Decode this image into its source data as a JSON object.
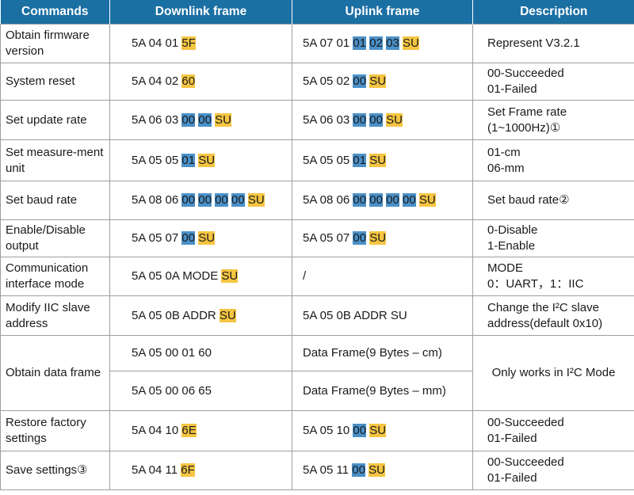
{
  "columns": [
    "Commands",
    "Downlink frame",
    "Uplink frame",
    "Description"
  ],
  "rows": [
    {
      "command": "Obtain firmware version",
      "downlink": [
        {
          "t": "5A 04 01 ",
          "c": "plain"
        },
        {
          "t": "5F",
          "c": "yellow"
        }
      ],
      "uplink": [
        {
          "t": "5A 07 01 ",
          "c": "plain"
        },
        {
          "t": "01",
          "c": "blue"
        },
        {
          "t": " ",
          "c": "plain"
        },
        {
          "t": "02",
          "c": "blue"
        },
        {
          "t": " ",
          "c": "plain"
        },
        {
          "t": "03",
          "c": "blue"
        },
        {
          "t": " ",
          "c": "plain"
        },
        {
          "t": "SU",
          "c": "yellow"
        }
      ],
      "description": [
        "Represent V3.2.1"
      ]
    },
    {
      "command": "System reset",
      "downlink": [
        {
          "t": "5A 04 02 ",
          "c": "plain"
        },
        {
          "t": "60",
          "c": "yellow"
        }
      ],
      "uplink": [
        {
          "t": "5A 05 02 ",
          "c": "plain"
        },
        {
          "t": "00",
          "c": "blue"
        },
        {
          "t": " ",
          "c": "plain"
        },
        {
          "t": "SU",
          "c": "yellow"
        }
      ],
      "description": [
        "00-Succeeded",
        "01-Failed"
      ]
    },
    {
      "command": "Set update rate",
      "downlink": [
        {
          "t": "5A 06 03 ",
          "c": "plain"
        },
        {
          "t": "00",
          "c": "blue"
        },
        {
          "t": " ",
          "c": "plain"
        },
        {
          "t": "00",
          "c": "blue"
        },
        {
          "t": " ",
          "c": "plain"
        },
        {
          "t": "SU",
          "c": "yellow"
        }
      ],
      "uplink": [
        {
          "t": "5A 06 03 ",
          "c": "plain"
        },
        {
          "t": "00",
          "c": "blue"
        },
        {
          "t": " ",
          "c": "plain"
        },
        {
          "t": "00",
          "c": "blue"
        },
        {
          "t": " ",
          "c": "plain"
        },
        {
          "t": "SU",
          "c": "yellow"
        }
      ],
      "description": [
        "Set Frame rate",
        "(1~1000Hz)①"
      ]
    },
    {
      "command": "Set measure-ment unit",
      "downlink": [
        {
          "t": "5A 05 05 ",
          "c": "plain"
        },
        {
          "t": "01",
          "c": "blue"
        },
        {
          "t": " ",
          "c": "plain"
        },
        {
          "t": "SU",
          "c": "yellow"
        }
      ],
      "uplink": [
        {
          "t": "5A 05 05 ",
          "c": "plain"
        },
        {
          "t": "01",
          "c": "blue"
        },
        {
          "t": " ",
          "c": "plain"
        },
        {
          "t": "SU",
          "c": "yellow"
        }
      ],
      "description": [
        "01-cm",
        "06-mm"
      ]
    },
    {
      "command": "Set baud rate",
      "downlink": [
        {
          "t": "5A 08 06 ",
          "c": "plain"
        },
        {
          "t": "00",
          "c": "blue"
        },
        {
          "t": " ",
          "c": "plain"
        },
        {
          "t": "00",
          "c": "blue"
        },
        {
          "t": " ",
          "c": "plain"
        },
        {
          "t": "00",
          "c": "blue"
        },
        {
          "t": " ",
          "c": "plain"
        },
        {
          "t": "00",
          "c": "blue"
        },
        {
          "t": " ",
          "c": "plain"
        },
        {
          "t": "SU",
          "c": "yellow"
        }
      ],
      "uplink": [
        {
          "t": "5A 08 06 ",
          "c": "plain"
        },
        {
          "t": "00",
          "c": "blue"
        },
        {
          "t": " ",
          "c": "plain"
        },
        {
          "t": "00",
          "c": "blue"
        },
        {
          "t": " ",
          "c": "plain"
        },
        {
          "t": "00",
          "c": "blue"
        },
        {
          "t": " ",
          "c": "plain"
        },
        {
          "t": "00",
          "c": "blue"
        },
        {
          "t": " ",
          "c": "plain"
        },
        {
          "t": "SU",
          "c": "yellow"
        }
      ],
      "description": [
        "Set baud rate②"
      ]
    },
    {
      "command": "Enable/Disable output",
      "downlink": [
        {
          "t": "5A 05 07 ",
          "c": "plain"
        },
        {
          "t": "00",
          "c": "blue"
        },
        {
          "t": " ",
          "c": "plain"
        },
        {
          "t": "SU",
          "c": "yellow"
        }
      ],
      "uplink": [
        {
          "t": "5A 05 07 ",
          "c": "plain"
        },
        {
          "t": "00",
          "c": "blue"
        },
        {
          "t": " ",
          "c": "plain"
        },
        {
          "t": "SU",
          "c": "yellow"
        }
      ],
      "description": [
        "0-Disable",
        "1-Enable"
      ]
    },
    {
      "command": "Communication interface mode",
      "downlink": [
        {
          "t": "5A 05 0A MODE ",
          "c": "plain"
        },
        {
          "t": "SU",
          "c": "yellow"
        }
      ],
      "uplink": [
        {
          "t": "/",
          "c": "plain"
        }
      ],
      "description": [
        "MODE",
        "0：UART，1：IIC"
      ]
    },
    {
      "command": "Modify IIC slave address",
      "downlink": [
        {
          "t": "5A 05 0B ADDR ",
          "c": "plain"
        },
        {
          "t": "SU",
          "c": "yellow"
        }
      ],
      "uplink": [
        {
          "t": "5A 05 0B ADDR SU",
          "c": "plain"
        }
      ],
      "description": [
        "Change the I²C slave",
        "address(default 0x10)"
      ]
    },
    {
      "command": "Obtain data frame",
      "sub": [
        {
          "downlink": [
            {
              "t": "5A 05 00 01 60",
              "c": "plain"
            }
          ],
          "uplink": [
            {
              "t": "Data Frame(9 Bytes – cm)",
              "c": "plain"
            }
          ]
        },
        {
          "downlink": [
            {
              "t": "5A 05 00 06 65",
              "c": "plain"
            }
          ],
          "uplink": [
            {
              "t": "Data Frame(9 Bytes – mm)",
              "c": "plain"
            }
          ]
        }
      ],
      "description": [
        "Only works in I²C Mode"
      ]
    },
    {
      "command": "Restore factory settings",
      "downlink": [
        {
          "t": "5A 04 10 ",
          "c": "plain"
        },
        {
          "t": "6E",
          "c": "yellow"
        }
      ],
      "uplink": [
        {
          "t": "5A 05 10 ",
          "c": "plain"
        },
        {
          "t": "00",
          "c": "blue"
        },
        {
          "t": " ",
          "c": "plain"
        },
        {
          "t": "SU",
          "c": "yellow"
        }
      ],
      "description": [
        "00-Succeeded",
        "01-Failed"
      ]
    },
    {
      "command": "Save settings③",
      "downlink": [
        {
          "t": "5A 04 11 ",
          "c": "plain"
        },
        {
          "t": "6F",
          "c": "yellow"
        }
      ],
      "uplink": [
        {
          "t": "5A 05 11 ",
          "c": "plain"
        },
        {
          "t": "00",
          "c": "blue"
        },
        {
          "t": " ",
          "c": "plain"
        },
        {
          "t": "SU",
          "c": "yellow"
        }
      ],
      "description": [
        "00-Succeeded",
        "01-Failed"
      ]
    }
  ],
  "colors": {
    "header_bg": "#1a6fa3",
    "value_highlight": "#4a90c8",
    "checksum_highlight": "#f5c542"
  }
}
